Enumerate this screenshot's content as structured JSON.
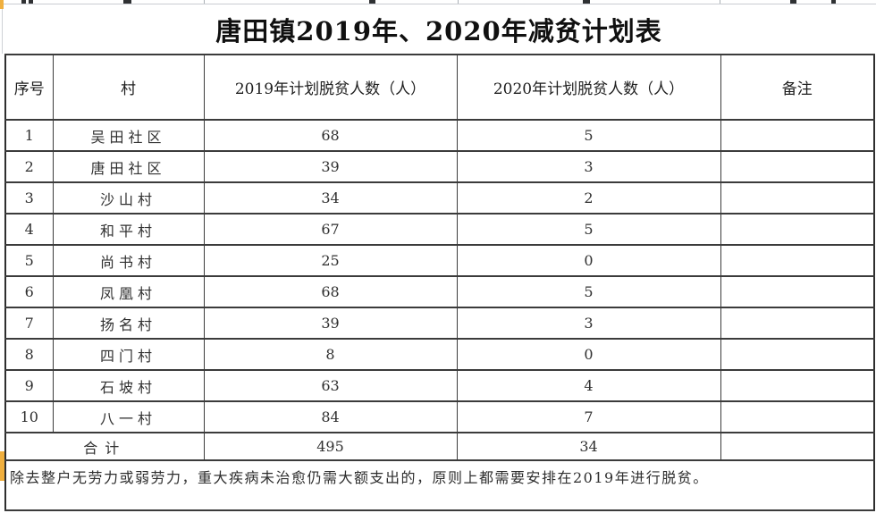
{
  "title": "唐田镇2019年、2020年减贫计划表",
  "table": {
    "headers": {
      "serial": "序号",
      "village": "村",
      "plan2019": "2019年计划脱贫人数（人）",
      "plan2020": "2020年计划脱贫人数（人）",
      "remarks": "备注"
    },
    "rows": [
      {
        "no": "1",
        "village": "吴田社区",
        "y2019": "68",
        "y2020": "5",
        "remark": ""
      },
      {
        "no": "2",
        "village": "唐田社区",
        "y2019": "39",
        "y2020": "3",
        "remark": ""
      },
      {
        "no": "3",
        "village": "沙山村",
        "y2019": "34",
        "y2020": "2",
        "remark": ""
      },
      {
        "no": "4",
        "village": "和平村",
        "y2019": "67",
        "y2020": "5",
        "remark": ""
      },
      {
        "no": "5",
        "village": "尚书村",
        "y2019": "25",
        "y2020": "0",
        "remark": ""
      },
      {
        "no": "6",
        "village": "凤凰村",
        "y2019": "68",
        "y2020": "5",
        "remark": ""
      },
      {
        "no": "7",
        "village": "扬名村",
        "y2019": "39",
        "y2020": "3",
        "remark": ""
      },
      {
        "no": "8",
        "village": "四门村",
        "y2019": "8",
        "y2020": "0",
        "remark": ""
      },
      {
        "no": "9",
        "village": "石坡村",
        "y2019": "63",
        "y2020": "4",
        "remark": ""
      },
      {
        "no": "10",
        "village": "八一村",
        "y2019": "84",
        "y2020": "7",
        "remark": ""
      }
    ],
    "total": {
      "label": "合计",
      "y2019": "495",
      "y2020": "34",
      "remark": ""
    }
  },
  "footnote": "除去整户无劳力或弱劳力，重大疾病未治愈仍需大额支出的，原则上都需要安排在2019年进行脱贫。",
  "colors": {
    "row_marker": "#f0af3e",
    "border": "#3b3b3b",
    "title_text": "#101010"
  }
}
